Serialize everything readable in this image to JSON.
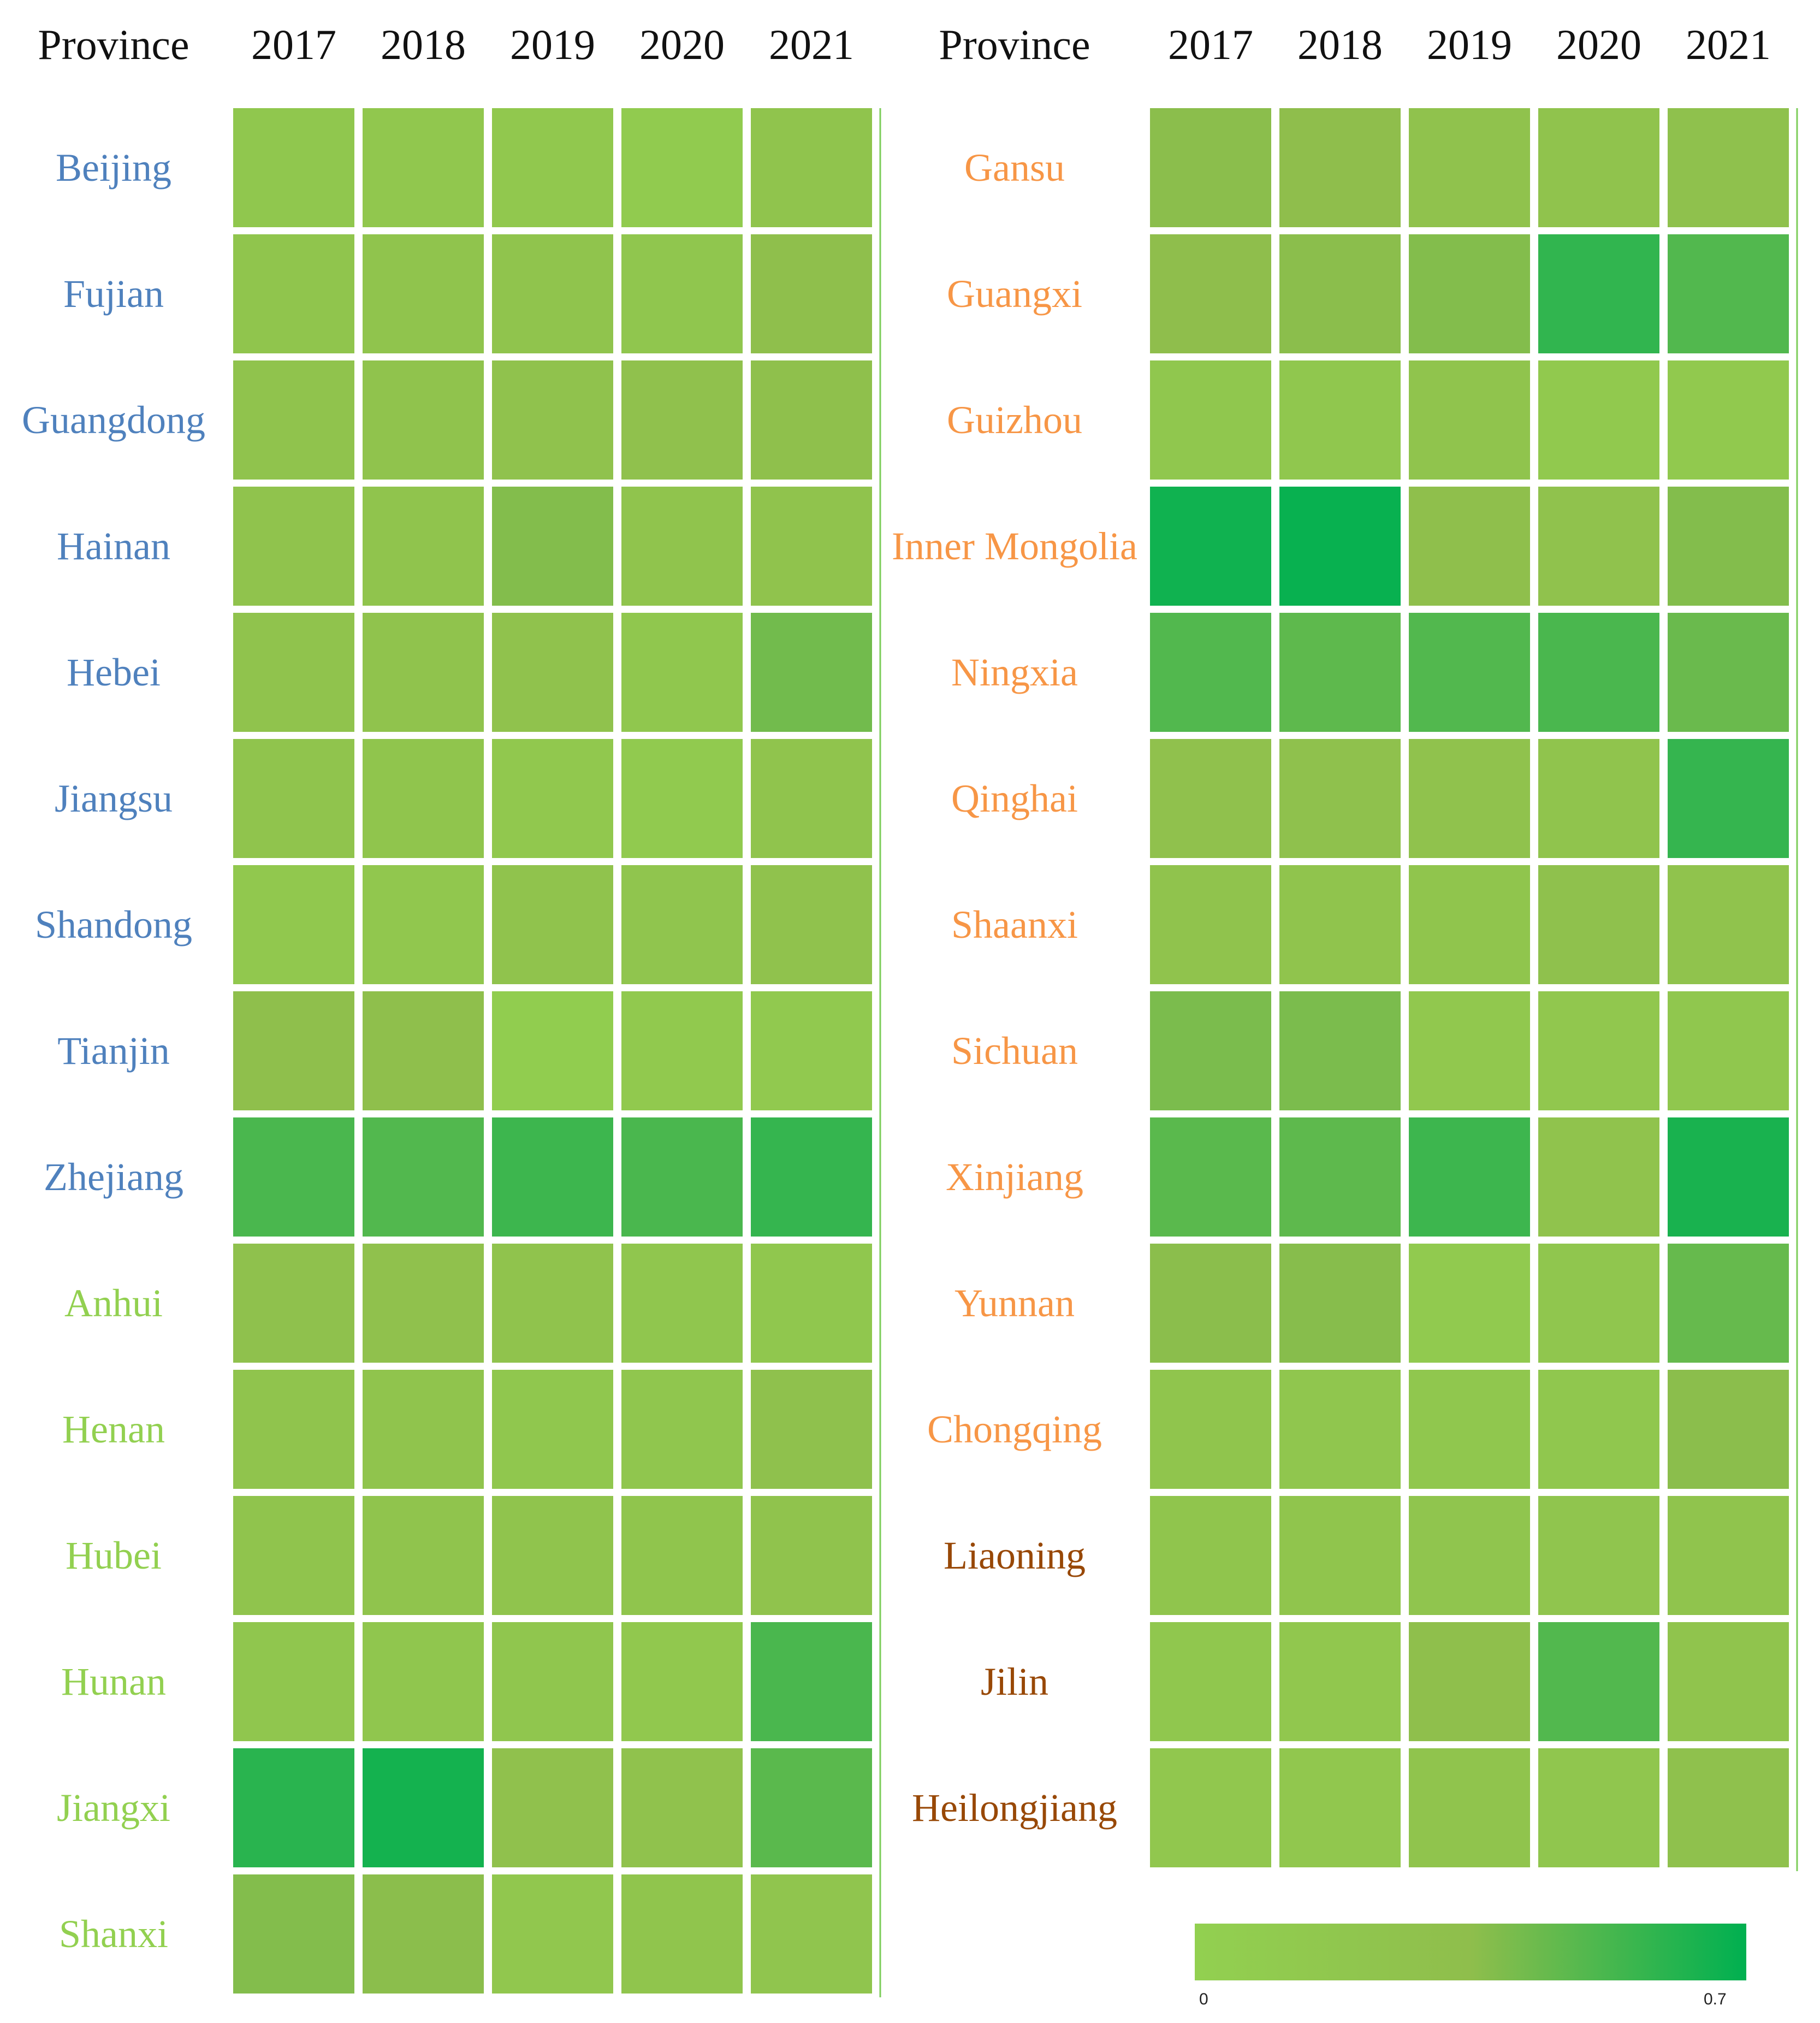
{
  "chart_data": {
    "type": "heatmap",
    "header": {
      "row_label": "Province",
      "years": [
        "2017",
        "2018",
        "2019",
        "2020",
        "2021"
      ]
    },
    "value_range": [
      0,
      0.7
    ],
    "colorscale": [
      "#92d050",
      "#8fbe4c",
      "#00b050"
    ],
    "group_colors": {
      "east": "#4f81bd",
      "central": "#92d050",
      "west": "#f79646",
      "northeast": "#984806"
    },
    "panels": [
      {
        "rows": [
          {
            "province": "Beijing",
            "group": "east",
            "values": [
              0.18,
              0.17,
              0.15,
              0.1,
              0.23
            ]
          },
          {
            "province": "Fujian",
            "group": "east",
            "values": [
              0.22,
              0.23,
              0.24,
              0.19,
              0.33
            ]
          },
          {
            "province": "Guangdong",
            "group": "east",
            "values": [
              0.25,
              0.26,
              0.27,
              0.29,
              0.32
            ]
          },
          {
            "province": "Hainan",
            "group": "east",
            "values": [
              0.25,
              0.24,
              0.38,
              0.24,
              0.26
            ]
          },
          {
            "province": "Hebei",
            "group": "east",
            "values": [
              0.25,
              0.25,
              0.27,
              0.18,
              0.42
            ]
          },
          {
            "province": "Jiangsu",
            "group": "east",
            "values": [
              0.24,
              0.22,
              0.16,
              0.11,
              0.24
            ]
          },
          {
            "province": "Shandong",
            "group": "east",
            "values": [
              0.15,
              0.17,
              0.26,
              0.21,
              0.28
            ]
          },
          {
            "province": "Tianjin",
            "group": "east",
            "values": [
              0.34,
              0.33,
              0.06,
              0.14,
              0.13
            ]
          },
          {
            "province": "Zhejiang",
            "group": "east",
            "values": [
              0.52,
              0.5,
              0.55,
              0.52,
              0.57
            ]
          },
          {
            "province": "Anhui",
            "group": "central",
            "values": [
              0.3,
              0.29,
              0.26,
              0.2,
              0.18
            ]
          },
          {
            "province": "Henan",
            "group": "central",
            "values": [
              0.23,
              0.23,
              0.18,
              0.2,
              0.3
            ]
          },
          {
            "province": "Hubei",
            "group": "central",
            "values": [
              0.24,
              0.24,
              0.23,
              0.22,
              0.26
            ]
          },
          {
            "province": "Hunan",
            "group": "central",
            "values": [
              0.19,
              0.2,
              0.2,
              0.16,
              0.52
            ]
          },
          {
            "province": "Jiangxi",
            "group": "central",
            "values": [
              0.6,
              0.65,
              0.29,
              0.28,
              0.48
            ]
          },
          {
            "province": "Shanxi",
            "group": "central",
            "values": [
              0.38,
              0.36,
              0.17,
              0.22,
              0.21
            ]
          }
        ]
      },
      {
        "rows": [
          {
            "province": "Gansu",
            "group": "west",
            "values": [
              0.36,
              0.35,
              0.28,
              0.25,
              0.3
            ]
          },
          {
            "province": "Guangxi",
            "group": "west",
            "values": [
              0.35,
              0.36,
              0.38,
              0.58,
              0.5
            ]
          },
          {
            "province": "Guizhou",
            "group": "west",
            "values": [
              0.18,
              0.18,
              0.24,
              0.14,
              0.14
            ]
          },
          {
            "province": "Inner Mongolia",
            "group": "west",
            "values": [
              0.66,
              0.68,
              0.34,
              0.27,
              0.38
            ]
          },
          {
            "province": "Ningxia",
            "group": "west",
            "values": [
              0.5,
              0.47,
              0.5,
              0.52,
              0.44
            ]
          },
          {
            "province": "Qinghai",
            "group": "west",
            "values": [
              0.29,
              0.3,
              0.27,
              0.23,
              0.57
            ]
          },
          {
            "province": "Shaanxi",
            "group": "west",
            "values": [
              0.25,
              0.24,
              0.22,
              0.3,
              0.26
            ]
          },
          {
            "province": "Sichuan",
            "group": "west",
            "values": [
              0.4,
              0.4,
              0.15,
              0.17,
              0.18
            ]
          },
          {
            "province": "Xinjiang",
            "group": "west",
            "values": [
              0.48,
              0.47,
              0.55,
              0.25,
              0.64
            ]
          },
          {
            "province": "Yunnan",
            "group": "west",
            "values": [
              0.36,
              0.37,
              0.12,
              0.2,
              0.45
            ]
          },
          {
            "province": "Chongqing",
            "group": "west",
            "values": [
              0.22,
              0.2,
              0.18,
              0.18,
              0.36
            ]
          },
          {
            "province": "Liaoning",
            "group": "northeast",
            "values": [
              0.22,
              0.22,
              0.21,
              0.21,
              0.23
            ]
          },
          {
            "province": "Jilin",
            "group": "northeast",
            "values": [
              0.18,
              0.17,
              0.34,
              0.5,
              0.24
            ]
          },
          {
            "province": "Heilongjiang",
            "group": "northeast",
            "values": [
              0.17,
              0.17,
              0.24,
              0.2,
              0.3
            ]
          }
        ]
      }
    ],
    "legend": {
      "type": "colorbar",
      "min_label": "0",
      "max_label": "0.7",
      "placement": "bottom-right"
    }
  }
}
